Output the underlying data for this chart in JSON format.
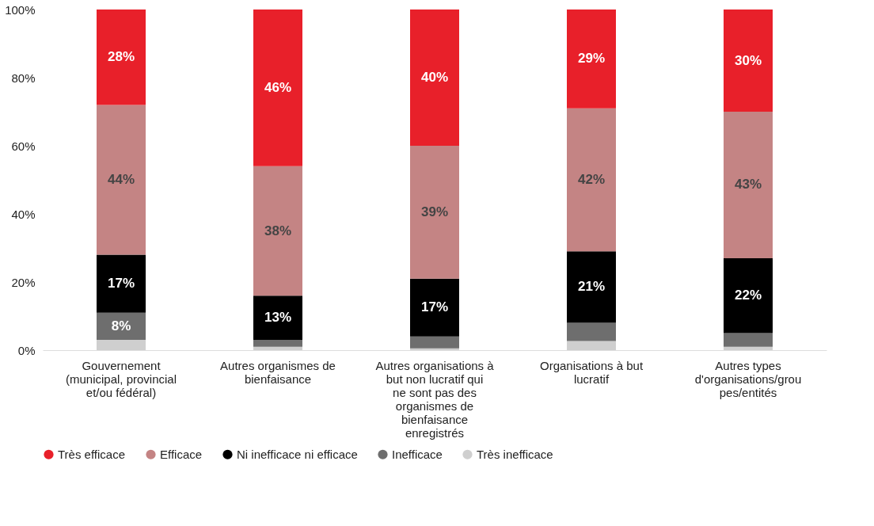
{
  "chart_data": {
    "type": "bar",
    "stacked": true,
    "categories": [
      "Gouvernement (municipal, provincial et/ou fédéral)",
      "Autres organismes de bienfaisance",
      "Autres organisations à but non lucratif qui ne sont pas des organismes de bienfaisance enregistrés",
      "Organisations à but lucratif",
      "Autres types d'organisations/grou pes/entités"
    ],
    "series": [
      {
        "name": "Très inefficace",
        "color": "#cfcfcf",
        "values": [
          3,
          1,
          0.5,
          2.7,
          1
        ],
        "value_labels": [
          null,
          null,
          null,
          null,
          null
        ]
      },
      {
        "name": "Inefficace",
        "color": "#6e6e6e",
        "values": [
          8,
          2,
          3.5,
          5.3,
          4
        ],
        "value_labels": [
          "8%",
          null,
          null,
          null,
          null
        ]
      },
      {
        "name": "Ni inefficace ni efficace",
        "color": "#000000",
        "values": [
          17,
          13,
          17,
          21,
          22
        ],
        "value_labels": [
          "17%",
          "13%",
          "17%",
          "21%",
          "22%"
        ]
      },
      {
        "name": "Efficace",
        "color": "#c48484",
        "values": [
          44,
          38,
          39,
          42,
          43
        ],
        "value_labels": [
          "44%",
          "38%",
          "39%",
          "42%",
          "43%"
        ]
      },
      {
        "name": "Très efficace",
        "color": "#e8202a",
        "values": [
          28,
          46,
          40,
          29,
          30
        ],
        "value_labels": [
          "28%",
          "46%",
          "40%",
          "29%",
          "30%"
        ]
      }
    ],
    "ylim": [
      0,
      100
    ],
    "yticks": [
      {
        "value": 0,
        "label": "0%"
      },
      {
        "value": 20,
        "label": "20%"
      },
      {
        "value": 40,
        "label": "40%"
      },
      {
        "value": 60,
        "label": "60%"
      },
      {
        "value": 80,
        "label": "80%"
      },
      {
        "value": 100,
        "label": "100%"
      }
    ],
    "grid": false,
    "legend": "bottom"
  }
}
